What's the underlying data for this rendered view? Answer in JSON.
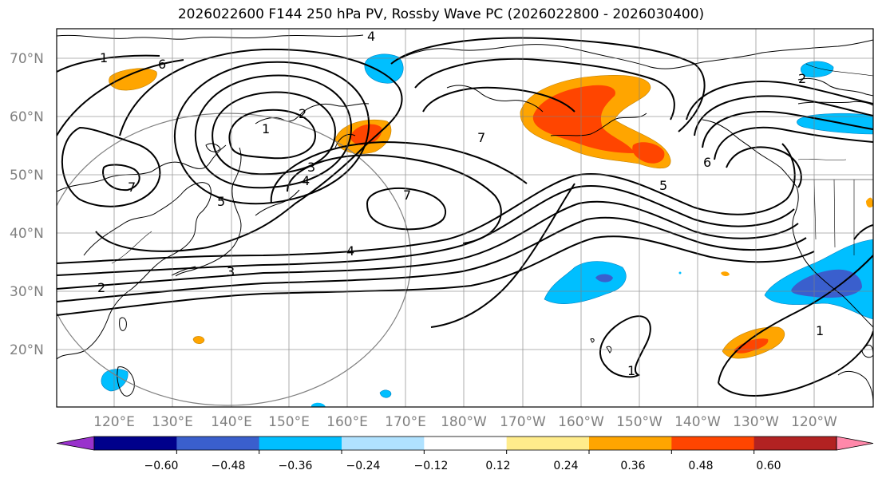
{
  "title": "2026022600 F144 250 hPa PV, Rossby Wave PC (2026022800 - 2026030400)",
  "lat_labels": [
    "70°N",
    "60°N",
    "50°N",
    "40°N",
    "30°N",
    "20°N"
  ],
  "lon_labels": [
    "120°E",
    "130°E",
    "140°E",
    "150°E",
    "160°E",
    "170°E",
    "180°W",
    "170°W",
    "160°W",
    "150°W",
    "140°W",
    "130°W",
    "120°W"
  ],
  "colorbar": {
    "ticks": [
      "−0.60",
      "−0.48",
      "−0.36",
      "−0.24",
      "−0.12",
      "0.12",
      "0.24",
      "0.36",
      "0.48",
      "0.60"
    ],
    "colors": [
      "#9932cc",
      "#00008b",
      "#3a5fcd",
      "#00bfff",
      "#b0e2ff",
      "#ffffff",
      "#ffec8b",
      "#ffa500",
      "#ff4500",
      "#b22222",
      "#ff88aa"
    ]
  },
  "contour_labels": [
    "1",
    "6",
    "4",
    "7",
    "2",
    "1",
    "3",
    "4",
    "5",
    "7",
    "4",
    "3",
    "2",
    "7",
    "5",
    "6",
    "1",
    "1",
    "2"
  ]
}
